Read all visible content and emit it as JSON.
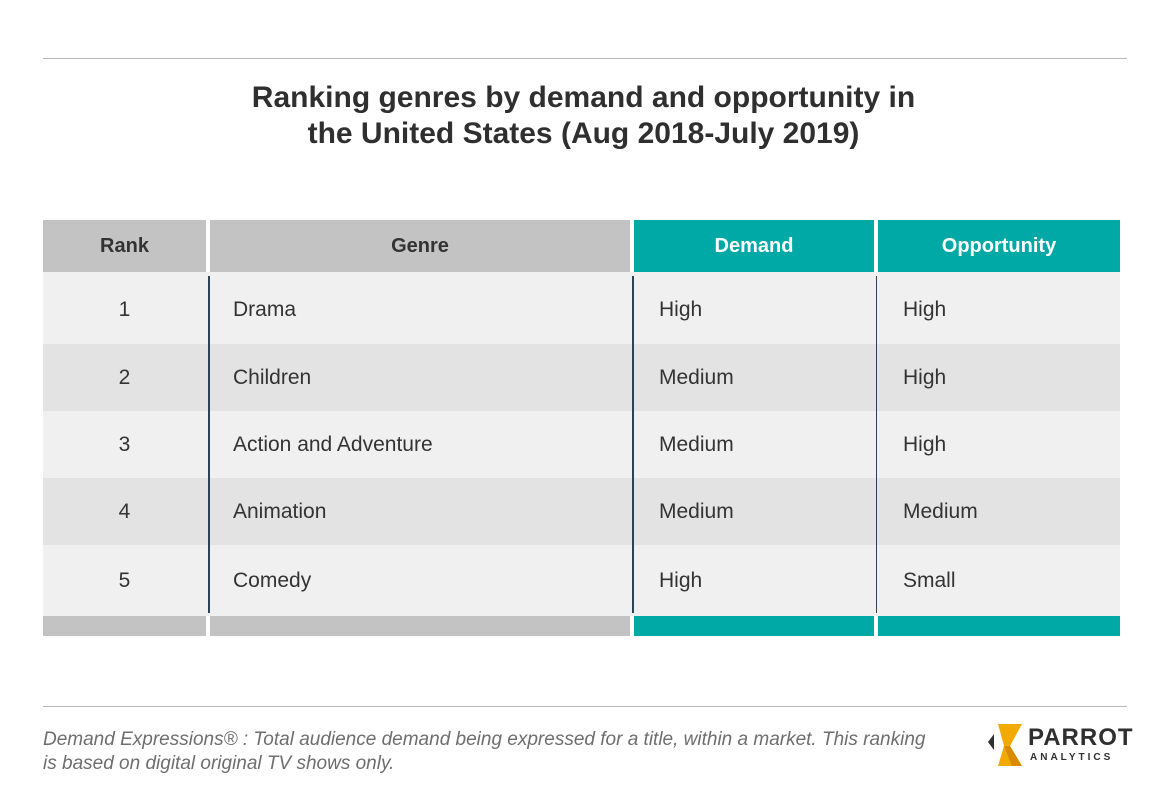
{
  "header": {
    "title_line1": "Ranking genres by demand and opportunity in",
    "title_line2": "the United States (Aug 2018-July 2019)"
  },
  "colors": {
    "accent": "#00a9a5",
    "header_grey": "#c3c3c3",
    "row_light": "#f0f0f0",
    "row_dark": "#e3e3e3",
    "divider": "#2b4257"
  },
  "chart_data": {
    "type": "table",
    "title": "Ranking genres by demand and opportunity in the United States (Aug 2018-July 2019)",
    "columns": [
      "Rank",
      "Genre",
      "Demand",
      "Opportunity"
    ],
    "rows": [
      [
        "1",
        "Drama",
        "High",
        "High"
      ],
      [
        "2",
        "Children",
        "Medium",
        "High"
      ],
      [
        "3",
        "Action and Adventure",
        "Medium",
        "High"
      ],
      [
        "4",
        "Animation",
        "Medium",
        "Medium"
      ],
      [
        "5",
        "Comedy",
        "High",
        "Small"
      ]
    ]
  },
  "footer": {
    "note_line1": "Demand Expressions® :  Total audience demand being expressed for a title, within a market. This ranking",
    "note_line2": "is based on digital original TV shows only.",
    "logo_name": "PARROT",
    "logo_sub": "ANALYTICS"
  }
}
